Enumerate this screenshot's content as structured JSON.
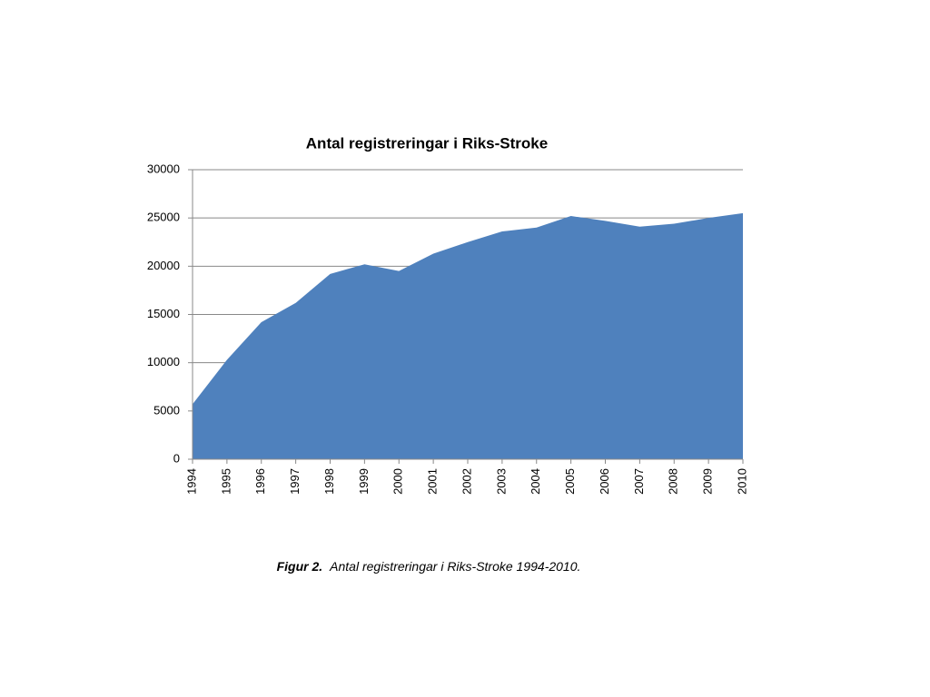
{
  "chart_data": {
    "type": "area",
    "title": "Antal registreringar i Riks-Stroke",
    "categories": [
      "1994",
      "1995",
      "1996",
      "1997",
      "1998",
      "1999",
      "2000",
      "2001",
      "2002",
      "2003",
      "2004",
      "2005",
      "2006",
      "2007",
      "2008",
      "2009",
      "2010"
    ],
    "values": [
      5700,
      10300,
      14200,
      16200,
      19200,
      20200,
      19500,
      21300,
      22500,
      23600,
      24000,
      25200,
      24700,
      24100,
      24400,
      25000,
      25500
    ],
    "color": "#4f81bd",
    "ylim": [
      0,
      30000
    ],
    "yticks": [
      0,
      5000,
      10000,
      15000,
      20000,
      25000,
      30000
    ],
    "grid": true
  },
  "caption": {
    "label": "Figur 2.",
    "text": "Antal registreringar i Riks-Stroke 1994-2010."
  }
}
